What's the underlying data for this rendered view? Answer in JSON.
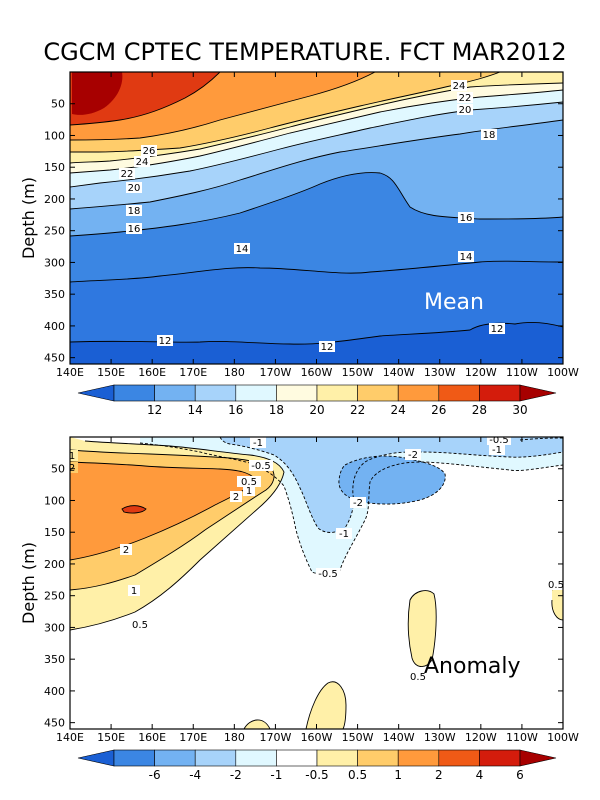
{
  "title": "CGCM CPTEC TEMPERATURE. FCT MAR2012",
  "chart_data": [
    {
      "type": "contour",
      "panel": "Mean",
      "ylabel": "Depth (m)",
      "x_ticks": [
        "140E",
        "150E",
        "160E",
        "170E",
        "180",
        "170W",
        "160W",
        "150W",
        "140W",
        "130W",
        "120W",
        "110W",
        "100W"
      ],
      "y_ticks": [
        50,
        100,
        150,
        200,
        250,
        300,
        350,
        400,
        450
      ],
      "ylim": [
        460,
        0
      ],
      "contour_levels": [
        12,
        14,
        16,
        18,
        20,
        22,
        24,
        26,
        28,
        30
      ],
      "contour_labels": [
        "24",
        "22",
        "20",
        "18",
        "26",
        "24",
        "22",
        "20",
        "18",
        "16",
        "16",
        "14",
        "14",
        "12",
        "12",
        "12"
      ],
      "colorbar": {
        "labels": [
          "12",
          "14",
          "16",
          "18",
          "20",
          "22",
          "24",
          "26",
          "28",
          "30"
        ],
        "colors": [
          "#1a5fd4",
          "#3b86e3",
          "#73b2f2",
          "#a7d3fa",
          "#e0f8ff",
          "#fffbe0",
          "#fff0a8",
          "#ffcc6a",
          "#ff9a3c",
          "#f05a16",
          "#d41c0c",
          "#a70000"
        ]
      }
    },
    {
      "type": "contour",
      "panel": "Anomaly",
      "ylabel": "Depth (m)",
      "x_ticks": [
        "140E",
        "150E",
        "160E",
        "170E",
        "180",
        "170W",
        "160W",
        "150W",
        "140W",
        "130W",
        "120W",
        "110W",
        "100W"
      ],
      "y_ticks": [
        50,
        100,
        150,
        200,
        250,
        300,
        350,
        400,
        450
      ],
      "ylim": [
        460,
        0
      ],
      "contour_levels": [
        -6,
        -4,
        -2,
        -1,
        -0.5,
        0.5,
        1,
        2,
        4,
        6
      ],
      "contour_labels": [
        "-1",
        "-0.5",
        "-0.5",
        "-1",
        "-2",
        "-2",
        "-1",
        "-0.5",
        "1",
        "2",
        "0.5",
        "1",
        "2",
        "2",
        "1",
        "-0.5",
        "0.5",
        "0.5"
      ],
      "colorbar": {
        "labels": [
          "-6",
          "-4",
          "-2",
          "-1",
          "-0.5",
          "0.5",
          "1",
          "2",
          "4",
          "6"
        ],
        "colors": [
          "#1a5fd4",
          "#3b86e3",
          "#73b2f2",
          "#a7d3fa",
          "#e0f8ff",
          "#ffffff",
          "#fff0a8",
          "#ffcc6a",
          "#ff9a3c",
          "#f05a16",
          "#d41c0c",
          "#a70000"
        ]
      }
    }
  ]
}
